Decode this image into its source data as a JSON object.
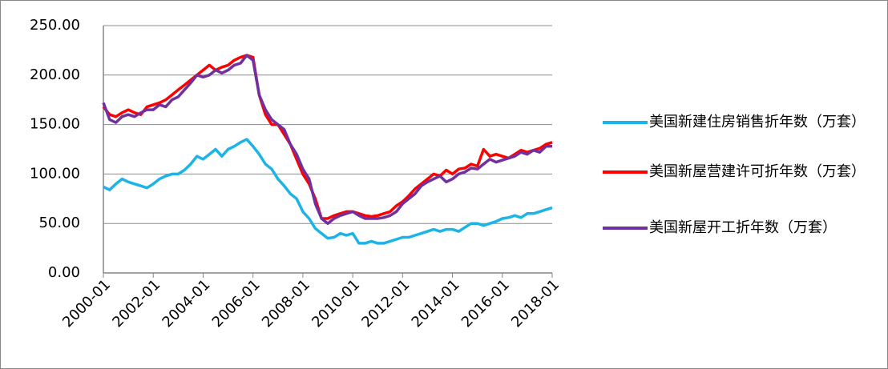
{
  "chart_data": {
    "type": "line",
    "x": [
      "2000-01",
      "2000-04",
      "2000-07",
      "2000-10",
      "2001-01",
      "2001-04",
      "2001-07",
      "2001-10",
      "2002-01",
      "2002-04",
      "2002-07",
      "2002-10",
      "2003-01",
      "2003-04",
      "2003-07",
      "2003-10",
      "2004-01",
      "2004-04",
      "2004-07",
      "2004-10",
      "2005-01",
      "2005-04",
      "2005-07",
      "2005-10",
      "2006-01",
      "2006-04",
      "2006-07",
      "2006-10",
      "2007-01",
      "2007-04",
      "2007-07",
      "2007-10",
      "2008-01",
      "2008-04",
      "2008-07",
      "2008-10",
      "2009-01",
      "2009-04",
      "2009-07",
      "2009-10",
      "2010-01",
      "2010-04",
      "2010-07",
      "2010-10",
      "2011-01",
      "2011-04",
      "2011-07",
      "2011-10",
      "2012-01",
      "2012-04",
      "2012-07",
      "2012-10",
      "2013-01",
      "2013-04",
      "2013-07",
      "2013-10",
      "2014-01",
      "2014-04",
      "2014-07",
      "2014-10",
      "2015-01",
      "2015-04",
      "2015-07",
      "2015-10",
      "2016-01",
      "2016-04",
      "2016-07",
      "2016-10",
      "2017-01",
      "2017-04",
      "2017-07",
      "2017-10",
      "2018-01"
    ],
    "xticks": [
      "2000-01",
      "2002-01",
      "2004-01",
      "2006-01",
      "2008-01",
      "2010-01",
      "2012-01",
      "2014-01",
      "2016-01",
      "2018-01"
    ],
    "series": [
      {
        "name": "美国新建住房销售折年数（万套）",
        "color": "#1cb4e6",
        "values": [
          87,
          84,
          90,
          95,
          92,
          90,
          88,
          86,
          90,
          95,
          98,
          100,
          100,
          104,
          110,
          118,
          115,
          120,
          125,
          118,
          125,
          128,
          132,
          135,
          128,
          120,
          110,
          105,
          95,
          88,
          80,
          75,
          62,
          55,
          45,
          40,
          35,
          36,
          40,
          38,
          40,
          30,
          30,
          32,
          30,
          30,
          32,
          34,
          36,
          36,
          38,
          40,
          42,
          44,
          42,
          44,
          44,
          42,
          46,
          50,
          50,
          48,
          50,
          52,
          55,
          56,
          58,
          56,
          60,
          60,
          62,
          64,
          66
        ]
      },
      {
        "name": "美国新屋营建许可折年数（万套）",
        "color": "#ff0000",
        "values": [
          168,
          160,
          158,
          162,
          165,
          162,
          160,
          168,
          170,
          172,
          175,
          180,
          185,
          190,
          195,
          200,
          205,
          210,
          205,
          208,
          210,
          215,
          218,
          220,
          218,
          180,
          160,
          150,
          150,
          140,
          130,
          115,
          100,
          90,
          75,
          55,
          55,
          58,
          60,
          62,
          62,
          60,
          58,
          57,
          58,
          60,
          62,
          68,
          72,
          78,
          85,
          90,
          95,
          100,
          98,
          104,
          100,
          105,
          106,
          110,
          108,
          125,
          118,
          120,
          118,
          116,
          120,
          124,
          122,
          124,
          126,
          130,
          132
        ]
      },
      {
        "name": "美国新屋开工折年数（万套）",
        "color": "#7030a0",
        "values": [
          172,
          155,
          152,
          158,
          160,
          158,
          162,
          165,
          165,
          170,
          168,
          175,
          178,
          185,
          192,
          200,
          198,
          200,
          205,
          202,
          205,
          210,
          212,
          220,
          215,
          180,
          165,
          155,
          150,
          145,
          130,
          120,
          105,
          95,
          70,
          55,
          50,
          55,
          58,
          60,
          62,
          58,
          55,
          55,
          55,
          56,
          58,
          62,
          70,
          75,
          80,
          88,
          92,
          95,
          98,
          92,
          95,
          100,
          102,
          106,
          105,
          110,
          115,
          112,
          114,
          116,
          118,
          122,
          120,
          124,
          122,
          128,
          128
        ]
      }
    ],
    "ylim": [
      0,
      250
    ],
    "yticks": [
      {
        "value": 0,
        "label": "0.00"
      },
      {
        "value": 50,
        "label": "50.00"
      },
      {
        "value": 100,
        "label": "100.00"
      },
      {
        "value": 150,
        "label": "150.00"
      },
      {
        "value": 200,
        "label": "200.00"
      },
      {
        "value": 250,
        "label": "250.00"
      }
    ],
    "grid": true,
    "legend": "right"
  }
}
